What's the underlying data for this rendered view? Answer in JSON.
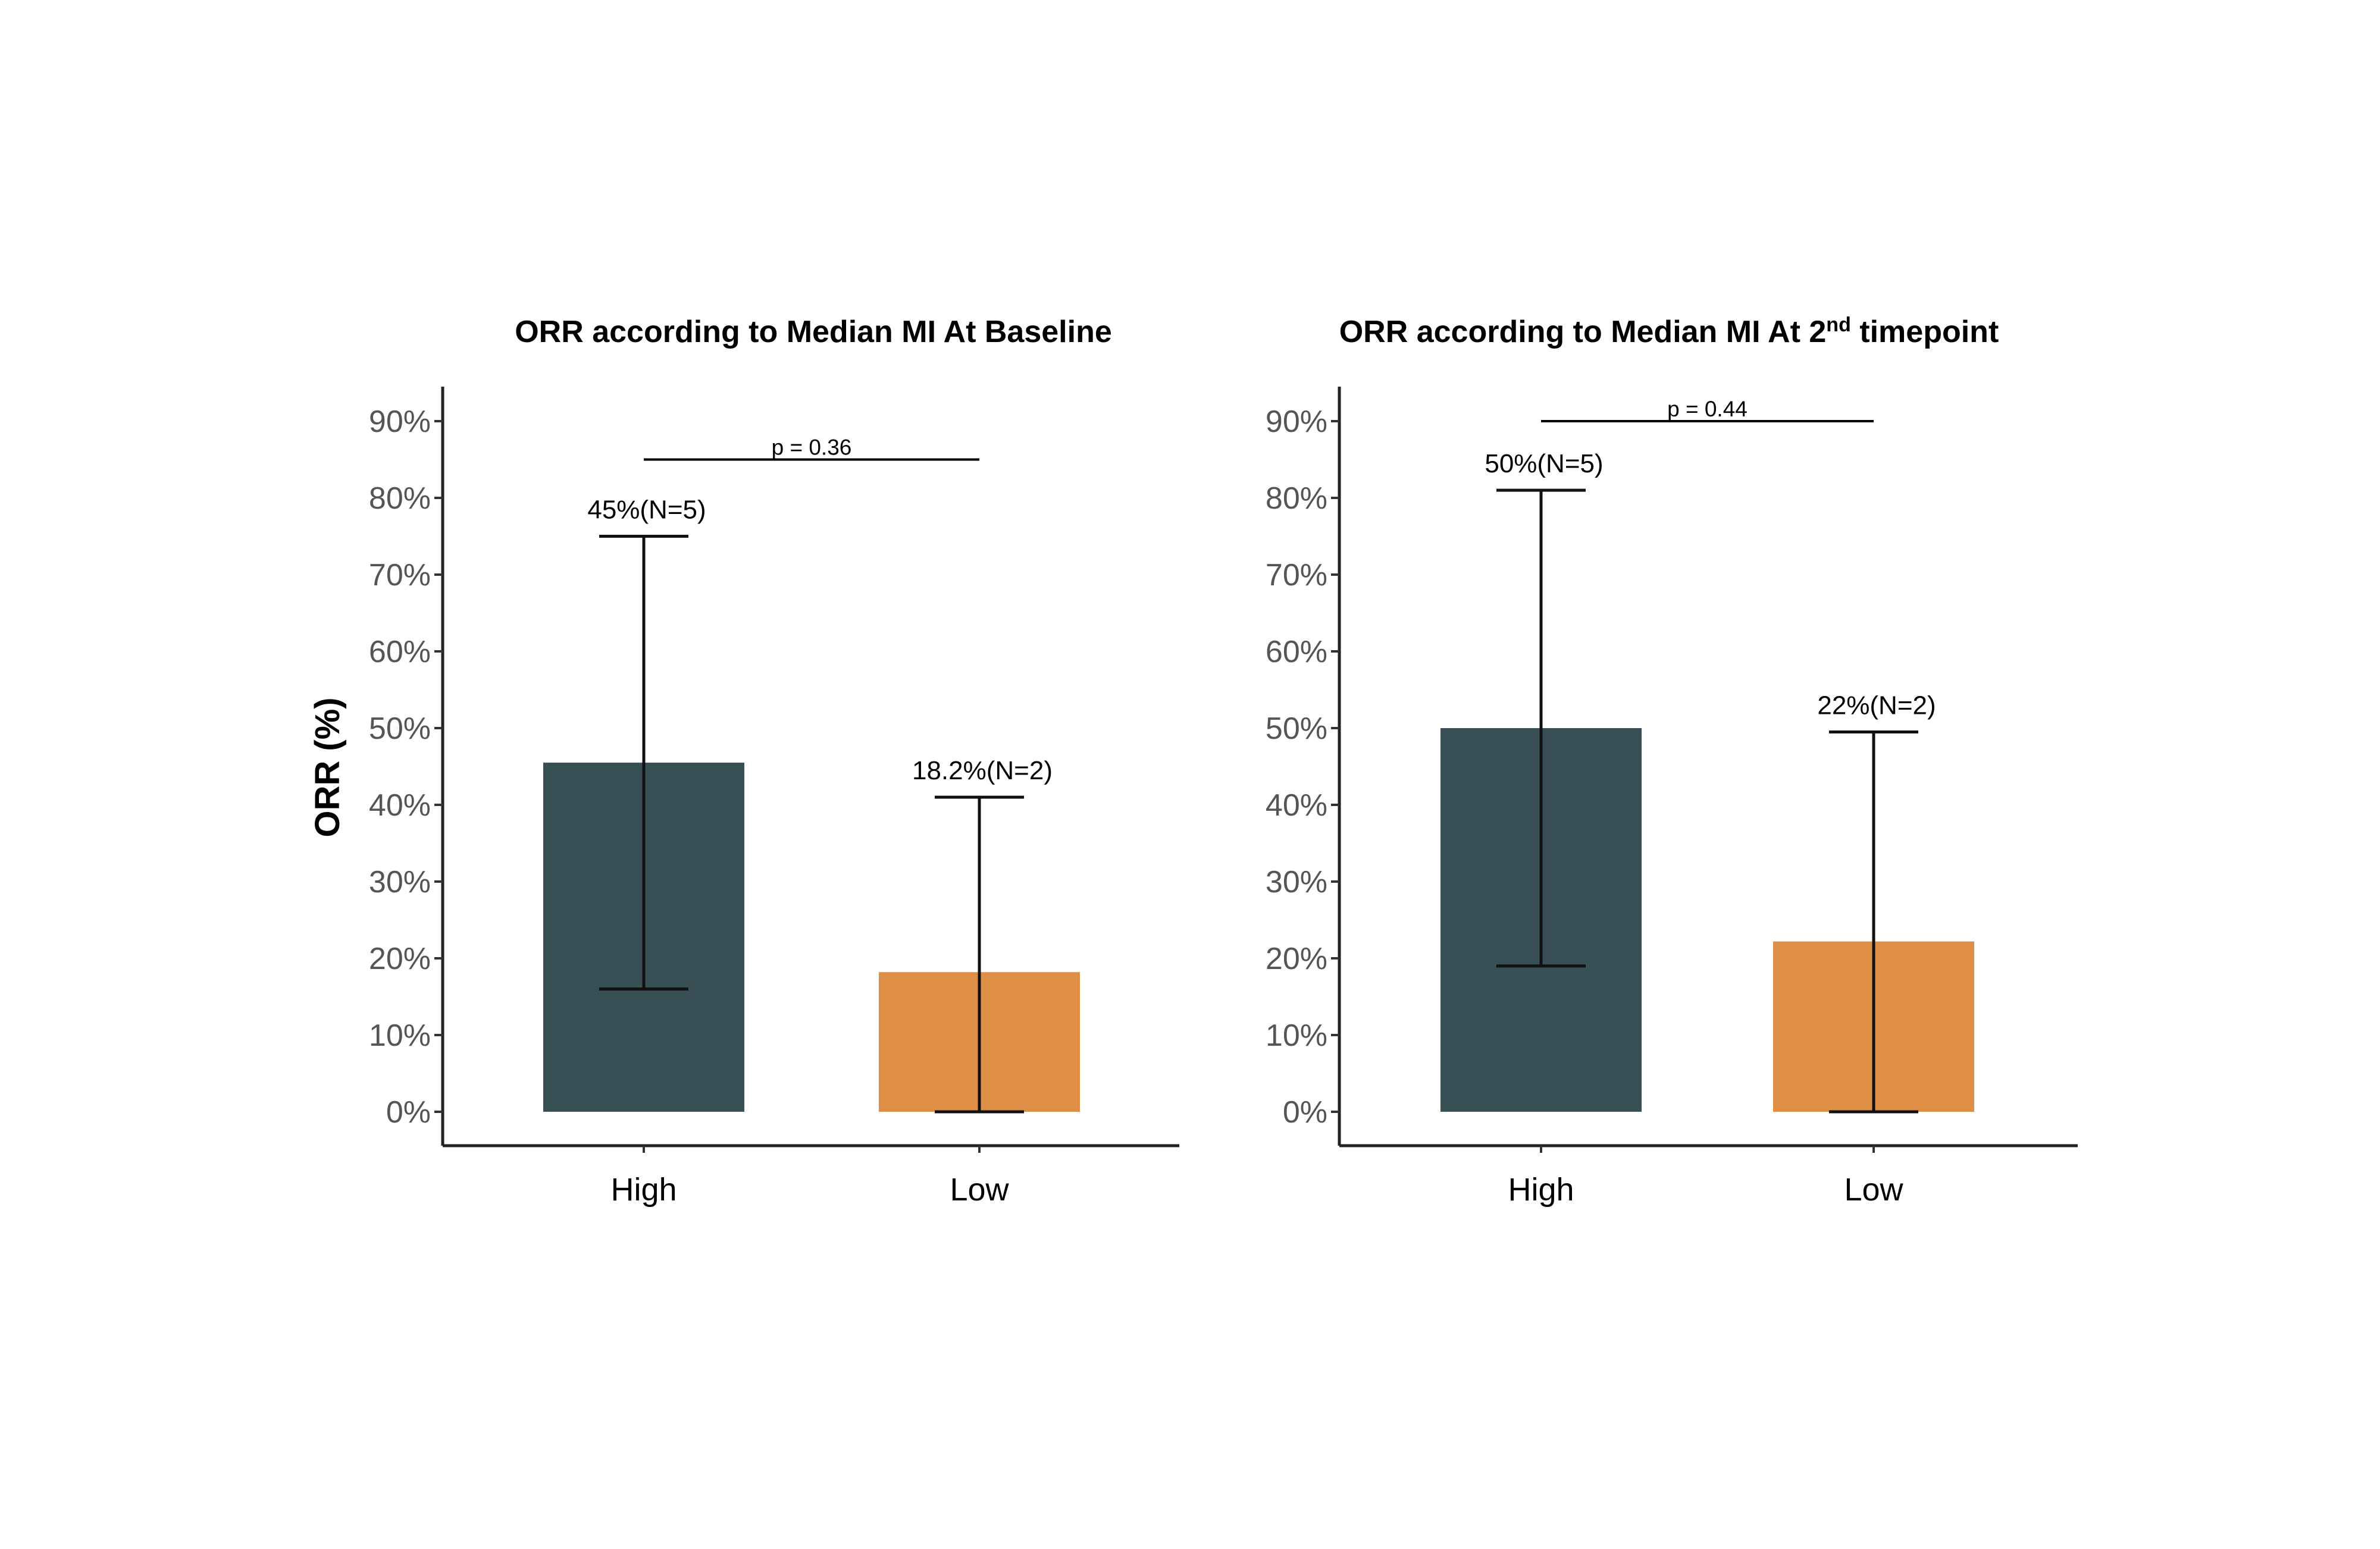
{
  "chart_data": [
    {
      "type": "bar",
      "title": "ORR according to Median MI At Baseline",
      "title_superscript": "",
      "title_suffix": "",
      "ylabel": "ORR (%)",
      "xlabel": "",
      "ylim": [
        0,
        90
      ],
      "yticks": [
        "0%",
        "10%",
        "20%",
        "30%",
        "40%",
        "50%",
        "60%",
        "70%",
        "80%",
        "90%"
      ],
      "categories": [
        "High",
        "Low"
      ],
      "values": [
        45.5,
        18.2
      ],
      "error_low": [
        16,
        0
      ],
      "error_high": [
        75,
        41
      ],
      "data_labels": [
        "45%(N=5)",
        "18.2%(N=2)"
      ],
      "colors": [
        "#374f55",
        "#df8f45"
      ],
      "p_value_label": "p = 0.36",
      "p_bracket_y": 85,
      "grid": false
    },
    {
      "type": "bar",
      "title": "ORR according to Median MI At 2",
      "title_superscript": "nd",
      "title_suffix": " timepoint",
      "ylabel": "",
      "xlabel": "",
      "ylim": [
        0,
        90
      ],
      "yticks": [
        "0%",
        "10%",
        "20%",
        "30%",
        "40%",
        "50%",
        "60%",
        "70%",
        "80%",
        "90%"
      ],
      "categories": [
        "High",
        "Low"
      ],
      "values": [
        50,
        22.2
      ],
      "error_low": [
        19,
        0
      ],
      "error_high": [
        81,
        49.5
      ],
      "data_labels": [
        "50%(N=5)",
        "22%(N=2)"
      ],
      "colors": [
        "#374f55",
        "#df8f45"
      ],
      "p_value_label": "p = 0.44",
      "p_bracket_y": 90,
      "grid": false
    }
  ]
}
